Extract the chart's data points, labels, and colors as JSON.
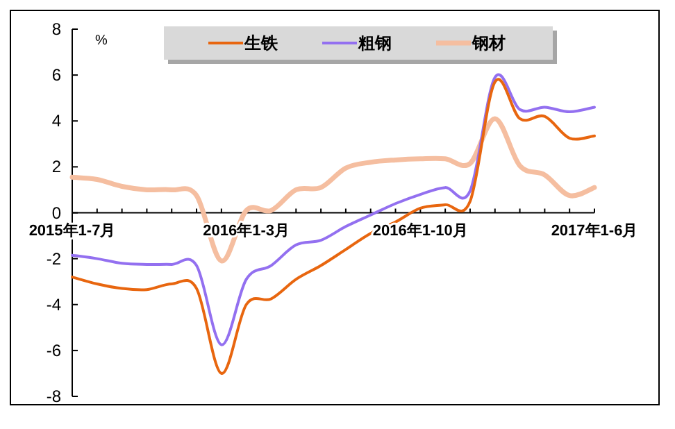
{
  "chart_data": {
    "type": "line",
    "ylabel": "%",
    "legend": "top",
    "grid": false,
    "categories": [
      "2015年1-7月",
      null,
      null,
      null,
      null,
      null,
      null,
      "2016年1-3月",
      null,
      null,
      null,
      null,
      null,
      null,
      "2016年1-10月",
      null,
      null,
      null,
      null,
      null,
      null,
      "2017年1-6月"
    ],
    "ylim": [
      -8,
      8
    ],
    "yticks": [
      -8,
      -6,
      -4,
      -2,
      0,
      2,
      4,
      6,
      8
    ],
    "series": [
      {
        "name": "生铁",
        "color": "#e8660f",
        "values": [
          -2.8,
          -3.1,
          -3.3,
          -3.35,
          -3.1,
          -3.3,
          -7.0,
          -4.0,
          -3.75,
          -2.9,
          -2.3,
          -1.6,
          -0.9,
          -0.4,
          0.2,
          0.35,
          0.5,
          5.7,
          4.1,
          4.2,
          3.25,
          3.35
        ]
      },
      {
        "name": "粗钢",
        "color": "#9370f0",
        "values": [
          -1.85,
          -2.0,
          -2.2,
          -2.25,
          -2.25,
          -2.3,
          -5.75,
          -2.9,
          -2.3,
          -1.4,
          -1.2,
          -0.6,
          -0.1,
          0.4,
          0.8,
          1.1,
          0.95,
          5.9,
          4.5,
          4.6,
          4.4,
          4.6
        ]
      },
      {
        "name": "钢材",
        "color": "#f5bea0",
        "values": [
          1.55,
          1.45,
          1.15,
          1.0,
          1.0,
          0.75,
          -2.1,
          0.1,
          0.1,
          1.0,
          1.1,
          1.95,
          2.2,
          2.3,
          2.35,
          2.35,
          2.15,
          4.1,
          2.05,
          1.65,
          0.75,
          1.1
        ]
      }
    ]
  }
}
